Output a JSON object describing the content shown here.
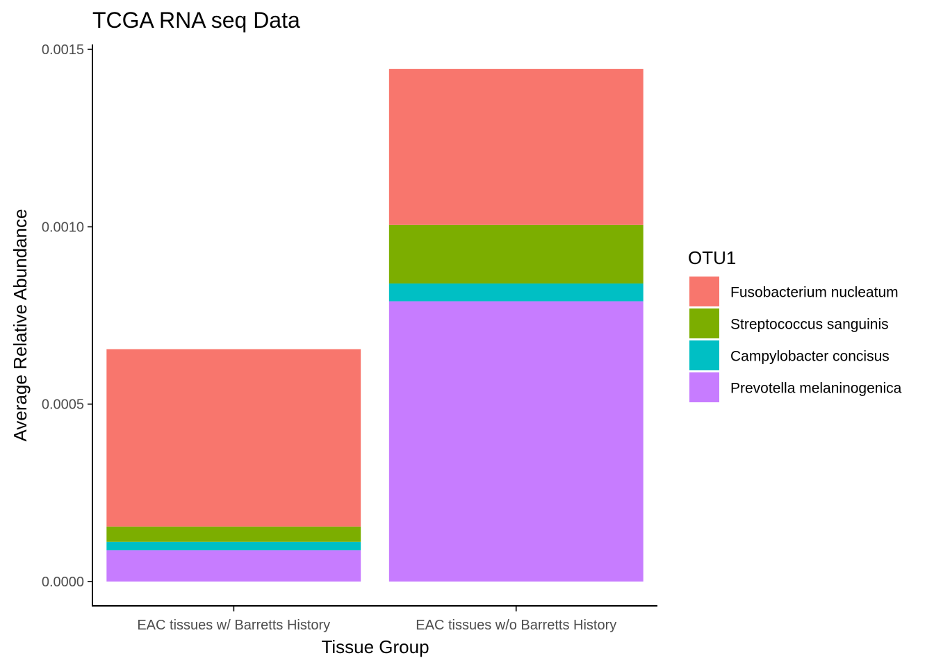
{
  "chart_data": {
    "type": "bar",
    "stacked": true,
    "title": "TCGA RNA seq Data",
    "xlabel": "Tissue Group",
    "ylabel": "Average Relative Abundance",
    "categories": [
      "EAC tissues w/ Barretts History",
      "EAC tissues w/o Barretts History"
    ],
    "ylim": [
      0,
      0.0015
    ],
    "yticks": [
      0.0,
      0.0005,
      0.001,
      0.0015
    ],
    "ytick_labels": [
      "0.0000",
      "0.0005",
      "0.0010",
      "0.0015"
    ],
    "legend": {
      "title": "OTU1",
      "position": "right"
    },
    "grid": false,
    "series": [
      {
        "name": "Prevotella melaninogenica",
        "color": "#C77CFF",
        "values": [
          8.8e-05,
          0.00079
        ]
      },
      {
        "name": "Campylobacter concisus",
        "color": "#00BFC4",
        "values": [
          2.4e-05,
          5e-05
        ]
      },
      {
        "name": "Streptococcus sanguinis",
        "color": "#7CAE00",
        "values": [
          4.3e-05,
          0.000165
        ]
      },
      {
        "name": "Fusobacterium nucleatum",
        "color": "#F8766D",
        "values": [
          0.0005,
          0.00044
        ]
      }
    ],
    "legend_order": [
      "Fusobacterium nucleatum",
      "Streptococcus sanguinis",
      "Campylobacter concisus",
      "Prevotella melaninogenica"
    ]
  }
}
